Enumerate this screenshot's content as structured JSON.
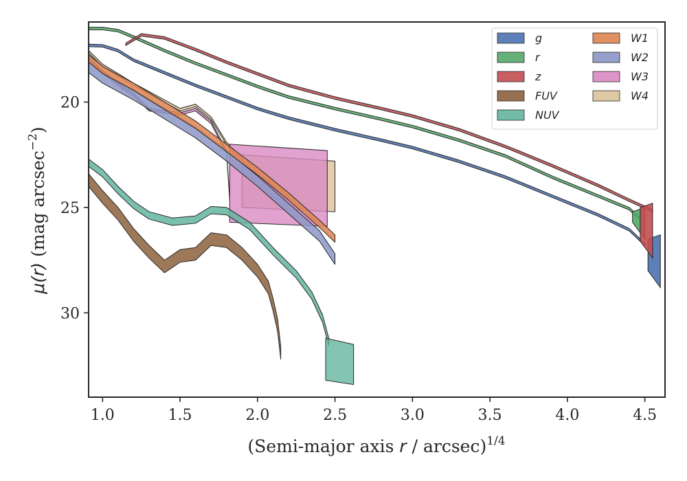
{
  "chart_data": {
    "type": "area",
    "xlabel": "(Semi-major axis r / arcsec)^1/4",
    "xlabel_parts": {
      "pre": "(Semi-major axis ",
      "var": "r",
      "post": " / arcsec)",
      "sup": "1/4"
    },
    "ylabel": "μ(r) (mag arcsec^−2)",
    "ylabel_parts": {
      "mu": "μ(",
      "var": "r",
      "close": ")",
      "units": " (mag arcsec",
      "sup": "−2",
      "end": ")"
    },
    "xlim": [
      0.91,
      4.63
    ],
    "ylim": [
      34.0,
      16.2
    ],
    "y_inverted": true,
    "xticks": [
      1.0,
      1.5,
      2.0,
      2.5,
      3.0,
      3.5,
      4.0,
      4.5
    ],
    "xtick_labels": [
      "1.0",
      "1.5",
      "2.0",
      "2.5",
      "3.0",
      "3.5",
      "4.0",
      "4.5"
    ],
    "yticks": [
      20,
      25,
      30
    ],
    "ytick_labels": [
      "20",
      "25",
      "30"
    ],
    "grid": false,
    "legend_position": "top-right",
    "legend_columns": 2,
    "series": [
      {
        "name": "g",
        "color": "#4c72b0",
        "points": [
          [
            0.91,
            17.25
          ],
          [
            1.0,
            17.27
          ],
          [
            1.1,
            17.5
          ],
          [
            1.2,
            17.95
          ],
          [
            1.4,
            18.55
          ],
          [
            1.6,
            19.15
          ],
          [
            1.8,
            19.7
          ],
          [
            2.0,
            20.25
          ],
          [
            2.2,
            20.7
          ],
          [
            2.5,
            21.25
          ],
          [
            2.8,
            21.75
          ],
          [
            3.0,
            22.1
          ],
          [
            3.3,
            22.75
          ],
          [
            3.6,
            23.5
          ],
          [
            3.9,
            24.4
          ],
          [
            4.2,
            25.3
          ],
          [
            4.4,
            26.0
          ],
          [
            4.5,
            26.7
          ]
        ],
        "upper": [
          [
            4.5,
            26.7
          ],
          [
            4.6,
            26.4
          ]
        ],
        "lower": [
          [
            4.5,
            27.2
          ],
          [
            4.55,
            28.7
          ]
        ],
        "end": [
          4.6,
          26.5,
          28.8
        ]
      },
      {
        "name": "r",
        "color": "#55a868",
        "points": [
          [
            0.91,
            16.45
          ],
          [
            1.0,
            16.45
          ],
          [
            1.1,
            16.55
          ],
          [
            1.2,
            16.85
          ],
          [
            1.4,
            17.5
          ],
          [
            1.6,
            18.1
          ],
          [
            1.8,
            18.65
          ],
          [
            2.0,
            19.2
          ],
          [
            2.2,
            19.7
          ],
          [
            2.5,
            20.25
          ],
          [
            2.8,
            20.75
          ],
          [
            3.0,
            21.1
          ],
          [
            3.3,
            21.75
          ],
          [
            3.6,
            22.5
          ],
          [
            3.9,
            23.5
          ],
          [
            4.2,
            24.4
          ],
          [
            4.4,
            25.0
          ],
          [
            4.5,
            25.7
          ]
        ],
        "end": [
          4.5,
          25.2,
          26.5
        ]
      },
      {
        "name": "z",
        "color": "#c44e52",
        "points": [
          [
            1.15,
            17.2
          ],
          [
            1.25,
            16.75
          ],
          [
            1.4,
            16.9
          ],
          [
            1.6,
            17.45
          ],
          [
            1.8,
            18.05
          ],
          [
            2.0,
            18.6
          ],
          [
            2.2,
            19.15
          ],
          [
            2.5,
            19.75
          ],
          [
            2.8,
            20.25
          ],
          [
            3.0,
            20.6
          ],
          [
            3.3,
            21.25
          ],
          [
            3.6,
            22.05
          ],
          [
            3.9,
            22.95
          ],
          [
            4.2,
            23.9
          ],
          [
            4.4,
            24.6
          ],
          [
            4.55,
            25.1
          ]
        ],
        "end": [
          4.55,
          25.0,
          27.4
        ]
      },
      {
        "name": "FUV",
        "color": "#8c613c",
        "points": [
          [
            0.91,
            23.4
          ],
          [
            1.0,
            24.2
          ],
          [
            1.1,
            25.0
          ],
          [
            1.2,
            26.0
          ],
          [
            1.3,
            26.8
          ],
          [
            1.4,
            27.5
          ],
          [
            1.5,
            27.0
          ],
          [
            1.6,
            26.9
          ],
          [
            1.7,
            26.2
          ],
          [
            1.8,
            26.3
          ],
          [
            1.9,
            26.9
          ],
          [
            2.0,
            27.7
          ],
          [
            2.07,
            28.5
          ],
          [
            2.1,
            29.3
          ],
          [
            2.13,
            30.3
          ],
          [
            2.15,
            31.6
          ]
        ],
        "thick": 0.6
      },
      {
        "name": "NUV",
        "color": "#64b5a0",
        "points": [
          [
            0.91,
            22.7
          ],
          [
            1.0,
            23.2
          ],
          [
            1.1,
            24.0
          ],
          [
            1.2,
            24.7
          ],
          [
            1.3,
            25.2
          ],
          [
            1.45,
            25.5
          ],
          [
            1.6,
            25.4
          ],
          [
            1.7,
            24.95
          ],
          [
            1.8,
            25.0
          ],
          [
            1.95,
            25.7
          ],
          [
            2.1,
            26.9
          ],
          [
            2.25,
            28.0
          ],
          [
            2.35,
            29.0
          ],
          [
            2.42,
            30.1
          ],
          [
            2.46,
            31.2
          ]
        ],
        "thick": 0.35,
        "box": [
          2.44,
          2.62,
          31.2,
          33.4
        ]
      },
      {
        "name": "W1",
        "color": "#dd8452",
        "points": [
          [
            0.91,
            17.75
          ],
          [
            1.0,
            18.3
          ],
          [
            1.2,
            19.1
          ],
          [
            1.4,
            20.0
          ],
          [
            1.6,
            20.9
          ],
          [
            1.8,
            22.0
          ],
          [
            2.0,
            23.1
          ],
          [
            2.2,
            24.3
          ],
          [
            2.4,
            25.6
          ],
          [
            2.5,
            26.3
          ]
        ],
        "thick": 0.35
      },
      {
        "name": "W2",
        "color": "#8c96c6",
        "points": [
          [
            0.91,
            18.1
          ],
          [
            1.0,
            18.6
          ],
          [
            1.2,
            19.4
          ],
          [
            1.4,
            20.3
          ],
          [
            1.6,
            21.2
          ],
          [
            1.8,
            22.3
          ],
          [
            2.0,
            23.5
          ],
          [
            2.2,
            24.8
          ],
          [
            2.4,
            26.1
          ],
          [
            2.5,
            27.2
          ]
        ],
        "thick": 0.5
      },
      {
        "name": "W3",
        "color": "#da8bc3",
        "points": [
          [
            0.91,
            17.85
          ],
          [
            1.0,
            18.5
          ],
          [
            1.1,
            19.1
          ],
          [
            1.2,
            19.6
          ],
          [
            1.3,
            20.3
          ],
          [
            1.4,
            20.4
          ],
          [
            1.5,
            20.5
          ],
          [
            1.6,
            20.3
          ],
          [
            1.7,
            20.9
          ],
          [
            1.8,
            22.3
          ],
          [
            1.82,
            24.5
          ]
        ],
        "box": [
          1.82,
          2.45,
          22.0,
          25.9
        ]
      },
      {
        "name": "W4",
        "color": "#dcc39a",
        "points": [
          [
            0.91,
            17.55
          ],
          [
            1.0,
            18.2
          ],
          [
            1.2,
            19.1
          ],
          [
            1.4,
            19.9
          ],
          [
            1.5,
            20.3
          ],
          [
            1.6,
            20.1
          ],
          [
            1.7,
            20.7
          ],
          [
            1.8,
            21.9
          ],
          [
            1.9,
            22.6
          ]
        ],
        "box": [
          1.9,
          2.5,
          22.5,
          25.2
        ]
      }
    ]
  }
}
